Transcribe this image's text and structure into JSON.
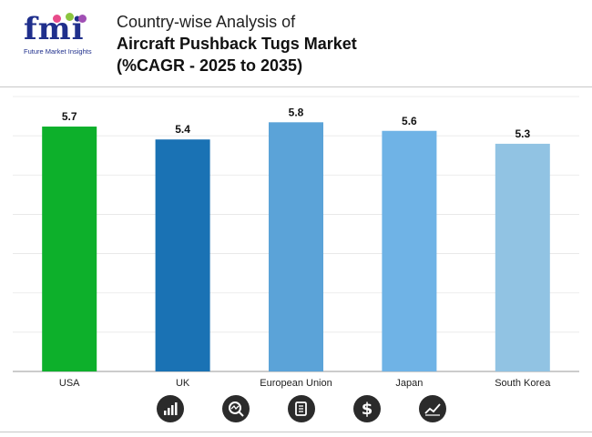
{
  "logo": {
    "text": "fmi",
    "subtitle": "Future Market Insights"
  },
  "title": {
    "line1": "Country-wise Analysis of",
    "line2": "Aircraft Pushback Tugs Market",
    "line3": "(%CAGR - 2025 to 2035)"
  },
  "chart_data": {
    "type": "bar",
    "categories": [
      "USA",
      "UK",
      "European Union",
      "Japan",
      "South Korea"
    ],
    "values": [
      5.7,
      5.4,
      5.8,
      5.6,
      5.3
    ],
    "colors": [
      "#0db02b",
      "#1a72b4",
      "#5ba3d8",
      "#6fb3e6",
      "#91c3e3"
    ],
    "ylim": [
      0,
      6.4
    ],
    "grid": true,
    "data_labels": true
  },
  "footer_icons": [
    "growth-chart-icon",
    "analysis-magnifier-icon",
    "report-document-icon",
    "dollar-icon",
    "trend-line-icon"
  ]
}
